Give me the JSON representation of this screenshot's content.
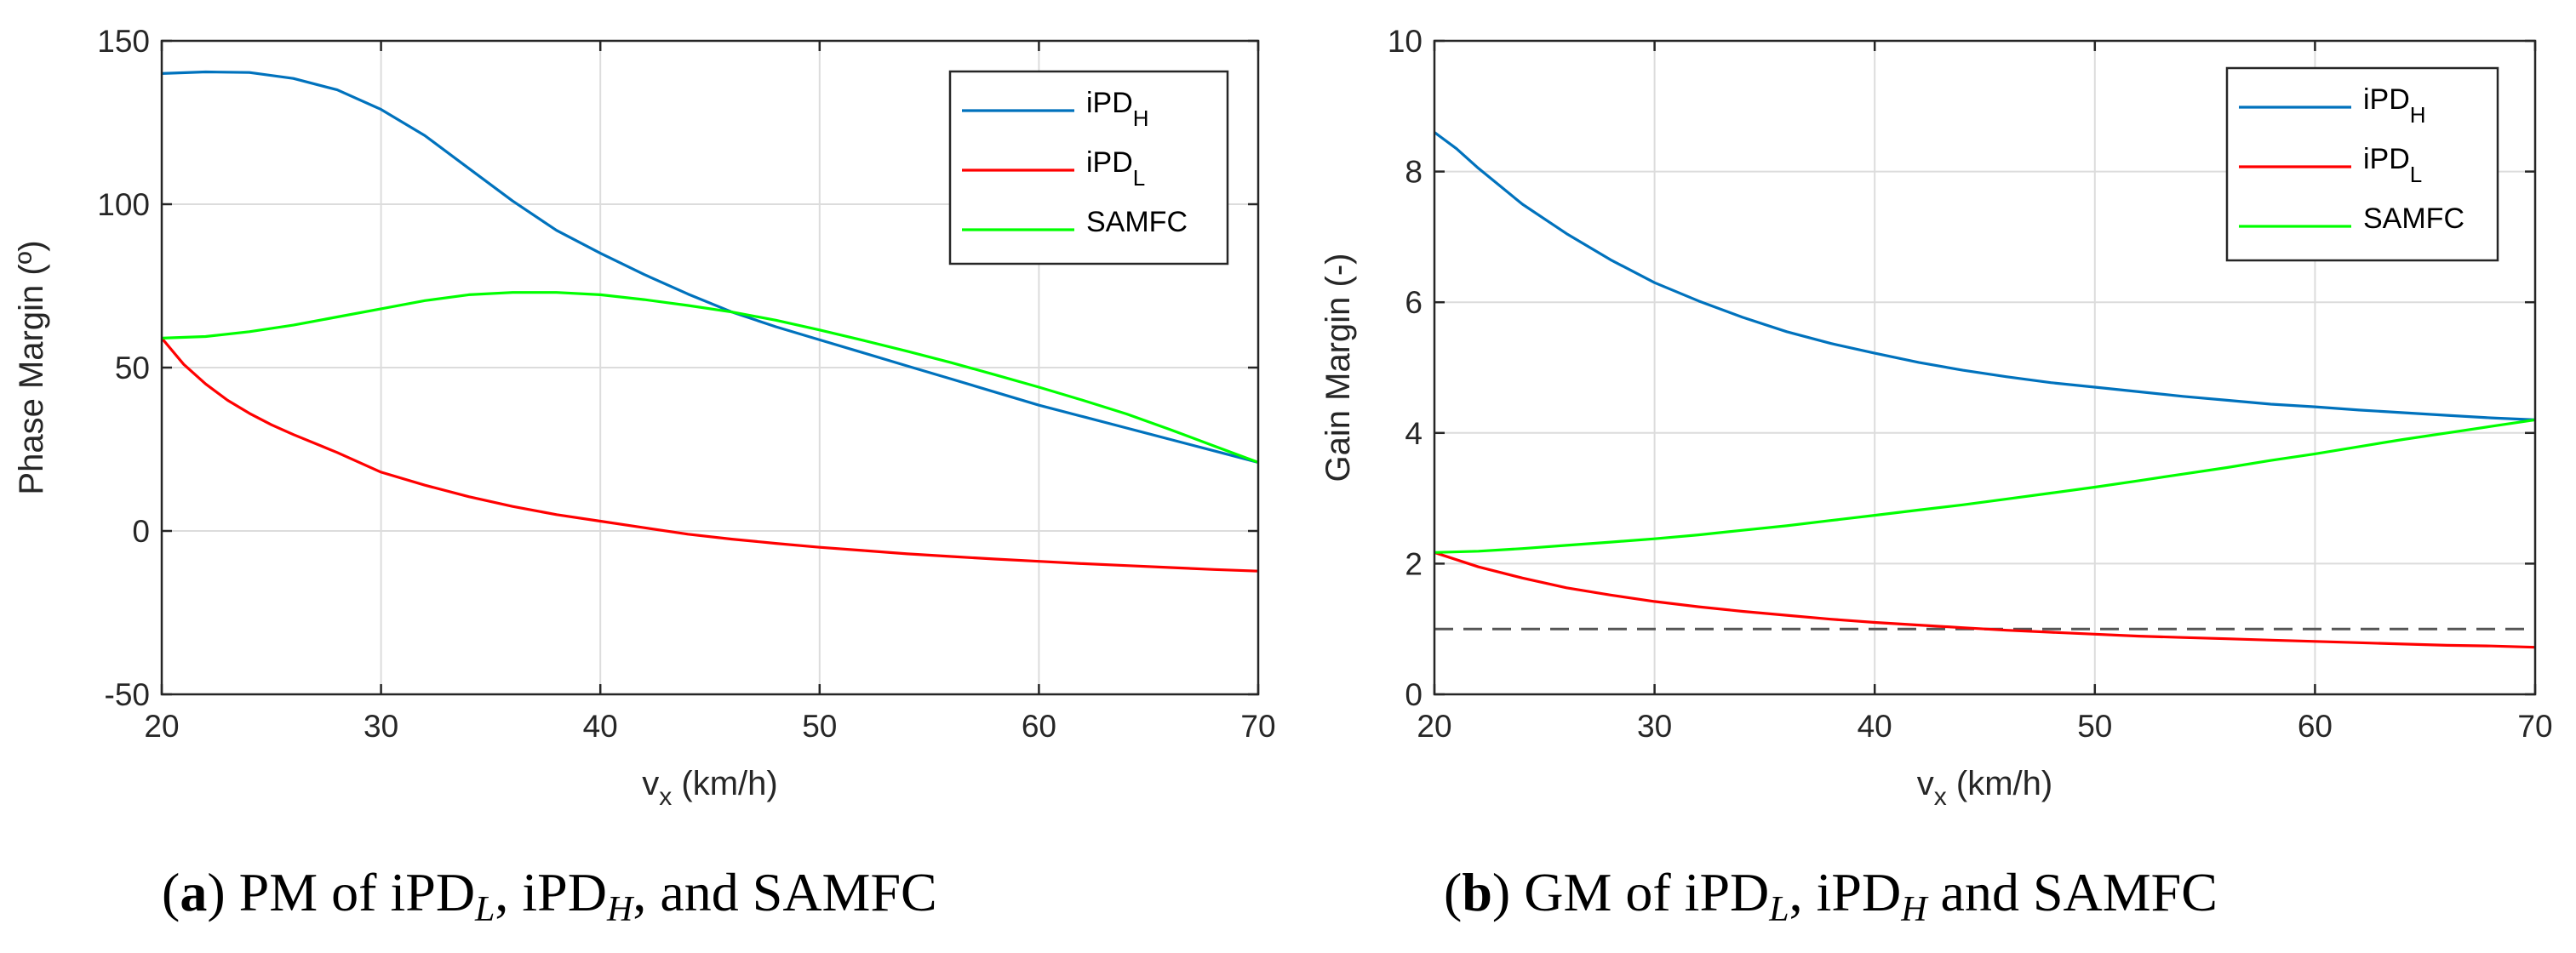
{
  "chart_data": [
    {
      "type": "line",
      "xlabel": "v",
      "xlabel_sub": "x",
      "xlabel_unit": "(km/h)",
      "ylabel": "Phase Margin (º)",
      "xlim": [
        20,
        70
      ],
      "ylim": [
        -50,
        150
      ],
      "xticks": [
        20,
        30,
        40,
        50,
        60,
        70
      ],
      "yticks": [
        -50,
        0,
        50,
        100,
        150
      ],
      "grid": true,
      "legend_position": "top-right",
      "caption": {
        "tag": "a",
        "text": "PM of iPD"
      },
      "series": [
        {
          "name": "iPD",
          "sub": "H",
          "color": "#0072BD",
          "x": [
            20,
            22,
            24,
            26,
            28,
            30,
            32,
            34,
            36,
            38,
            40,
            42,
            44,
            46,
            48,
            50,
            52,
            54,
            56,
            58,
            60,
            62,
            64,
            66,
            68,
            70
          ],
          "y": [
            140,
            140.5,
            140.3,
            138.5,
            135,
            129,
            121,
            111,
            101,
            92,
            85,
            78.5,
            72.5,
            67,
            62.5,
            58.5,
            54.5,
            50.5,
            46.5,
            42.5,
            38.5,
            35,
            31.5,
            28,
            24.5,
            21
          ]
        },
        {
          "name": "iPD",
          "sub": "L",
          "color": "#FF0000",
          "x": [
            20,
            21,
            22,
            23,
            24,
            25,
            26,
            28,
            30,
            32,
            34,
            36,
            38,
            40,
            42,
            44,
            46,
            48,
            50,
            52,
            54,
            56,
            58,
            60,
            62,
            64,
            66,
            68,
            70
          ],
          "y": [
            59,
            51,
            45,
            40,
            36,
            32.5,
            29.5,
            24,
            18,
            14,
            10.5,
            7.5,
            5,
            3,
            1,
            -1,
            -2.5,
            -3.8,
            -5,
            -6,
            -7,
            -7.8,
            -8.6,
            -9.3,
            -10,
            -10.6,
            -11.2,
            -11.8,
            -12.3
          ]
        },
        {
          "name": "SAMFC",
          "sub": "",
          "color": "#00FF00",
          "x": [
            20,
            22,
            24,
            26,
            28,
            30,
            32,
            34,
            36,
            38,
            40,
            42,
            44,
            46,
            48,
            50,
            52,
            54,
            56,
            58,
            60,
            62,
            64,
            66,
            68,
            70
          ],
          "y": [
            59,
            59.5,
            61,
            63,
            65.5,
            68,
            70.5,
            72.3,
            73,
            73,
            72.3,
            70.8,
            69,
            67,
            64.5,
            61.5,
            58.3,
            55,
            51.5,
            47.8,
            44,
            40,
            35.8,
            31,
            26,
            21
          ]
        }
      ]
    },
    {
      "type": "line",
      "xlabel": "v",
      "xlabel_sub": "x",
      "xlabel_unit": "(km/h)",
      "ylabel": "Gain Margin (-)",
      "xlim": [
        20,
        70
      ],
      "ylim": [
        0,
        10
      ],
      "xticks": [
        20,
        30,
        40,
        50,
        60,
        70
      ],
      "yticks": [
        0,
        2,
        4,
        6,
        8,
        10
      ],
      "grid": true,
      "legend_position": "top-right",
      "reference_line": {
        "y": 1,
        "style": "dashed",
        "color": "#555555"
      },
      "caption": {
        "tag": "b",
        "text": "GM of iPD"
      },
      "series": [
        {
          "name": "iPD",
          "sub": "H",
          "color": "#0072BD",
          "x": [
            20,
            21,
            22,
            24,
            26,
            28,
            30,
            32,
            34,
            36,
            38,
            40,
            42,
            44,
            46,
            48,
            50,
            52,
            54,
            56,
            58,
            60,
            62,
            64,
            66,
            68,
            70
          ],
          "y": [
            8.6,
            8.35,
            8.05,
            7.5,
            7.05,
            6.65,
            6.3,
            6.02,
            5.77,
            5.55,
            5.37,
            5.22,
            5.08,
            4.96,
            4.86,
            4.77,
            4.7,
            4.63,
            4.56,
            4.5,
            4.44,
            4.4,
            4.35,
            4.31,
            4.27,
            4.23,
            4.2
          ]
        },
        {
          "name": "iPD",
          "sub": "L",
          "color": "#FF0000",
          "x": [
            20,
            22,
            24,
            26,
            28,
            30,
            32,
            34,
            36,
            38,
            40,
            42,
            44,
            46,
            48,
            50,
            52,
            54,
            56,
            58,
            60,
            62,
            64,
            66,
            68,
            70
          ],
          "y": [
            2.17,
            1.95,
            1.78,
            1.63,
            1.52,
            1.42,
            1.34,
            1.27,
            1.21,
            1.15,
            1.1,
            1.06,
            1.02,
            0.98,
            0.95,
            0.92,
            0.89,
            0.87,
            0.85,
            0.83,
            0.81,
            0.79,
            0.77,
            0.75,
            0.74,
            0.72
          ]
        },
        {
          "name": "SAMFC",
          "sub": "",
          "color": "#00FF00",
          "x": [
            20,
            22,
            24,
            26,
            28,
            30,
            32,
            34,
            36,
            38,
            40,
            42,
            44,
            46,
            48,
            50,
            52,
            54,
            56,
            58,
            60,
            62,
            64,
            66,
            68,
            70
          ],
          "y": [
            2.17,
            2.19,
            2.23,
            2.28,
            2.33,
            2.38,
            2.44,
            2.51,
            2.58,
            2.66,
            2.74,
            2.82,
            2.9,
            2.99,
            3.08,
            3.17,
            3.27,
            3.37,
            3.47,
            3.58,
            3.68,
            3.79,
            3.9,
            4.0,
            4.1,
            4.2
          ]
        }
      ]
    }
  ],
  "captions": [
    {
      "tag": "a",
      "pre": "PM of iPD",
      "parts": [
        [
          "L",
          ", iPD"
        ],
        [
          "H",
          ", and SAMFC"
        ]
      ]
    },
    {
      "tag": "b",
      "pre": "GM of iPD",
      "parts": [
        [
          "L",
          ", iPD"
        ],
        [
          "H",
          " and SAMFC"
        ]
      ]
    }
  ]
}
